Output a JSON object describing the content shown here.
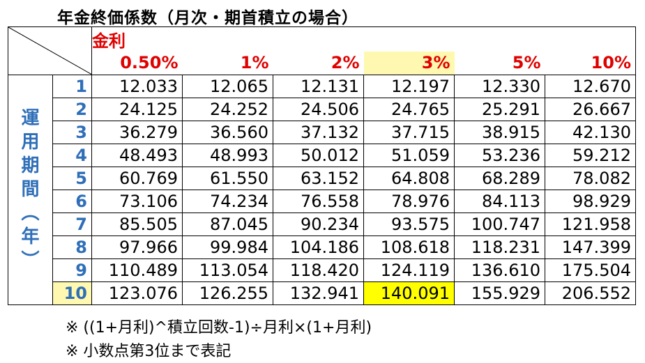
{
  "title": "年金終価係数（月次・期首積立の場合）",
  "rate_group_label": "金利",
  "side_label_chars": [
    "運",
    "用",
    "期",
    "間",
    "︵",
    "年",
    "︶"
  ],
  "rates": [
    "0.50%",
    "1%",
    "2%",
    "3%",
    "5%",
    "10%"
  ],
  "rows": [
    {
      "year": "1",
      "values": [
        "12.033",
        "12.065",
        "12.131",
        "12.197",
        "12.330",
        "12.670"
      ]
    },
    {
      "year": "2",
      "values": [
        "24.125",
        "24.252",
        "24.506",
        "24.765",
        "25.291",
        "26.667"
      ]
    },
    {
      "year": "3",
      "values": [
        "36.279",
        "36.560",
        "37.132",
        "37.715",
        "38.915",
        "42.130"
      ]
    },
    {
      "year": "4",
      "values": [
        "48.493",
        "48.993",
        "50.012",
        "51.059",
        "53.236",
        "59.212"
      ]
    },
    {
      "year": "5",
      "values": [
        "60.769",
        "61.550",
        "63.152",
        "64.808",
        "68.289",
        "78.082"
      ]
    },
    {
      "year": "6",
      "values": [
        "73.106",
        "74.234",
        "76.558",
        "78.976",
        "84.113",
        "98.929"
      ]
    },
    {
      "year": "7",
      "values": [
        "85.505",
        "87.045",
        "90.234",
        "93.575",
        "100.747",
        "121.958"
      ]
    },
    {
      "year": "8",
      "values": [
        "97.966",
        "99.984",
        "104.186",
        "108.618",
        "118.231",
        "147.399"
      ]
    },
    {
      "year": "9",
      "values": [
        "110.489",
        "113.054",
        "118.420",
        "124.119",
        "136.610",
        "175.504"
      ]
    },
    {
      "year": "10",
      "values": [
        "123.076",
        "126.255",
        "132.941",
        "140.091",
        "155.929",
        "206.552"
      ]
    }
  ],
  "notes": [
    "※ ((1+月利)^積立回数-1)÷月利×(1+月利)",
    "※ 小数点第3位まで表記"
  ],
  "colors": {
    "rate_header_text": "#e00000",
    "year_text": "#2f6fb8",
    "highlight_pale": "#fff8b0",
    "highlight_yellow": "#ffff00"
  }
}
